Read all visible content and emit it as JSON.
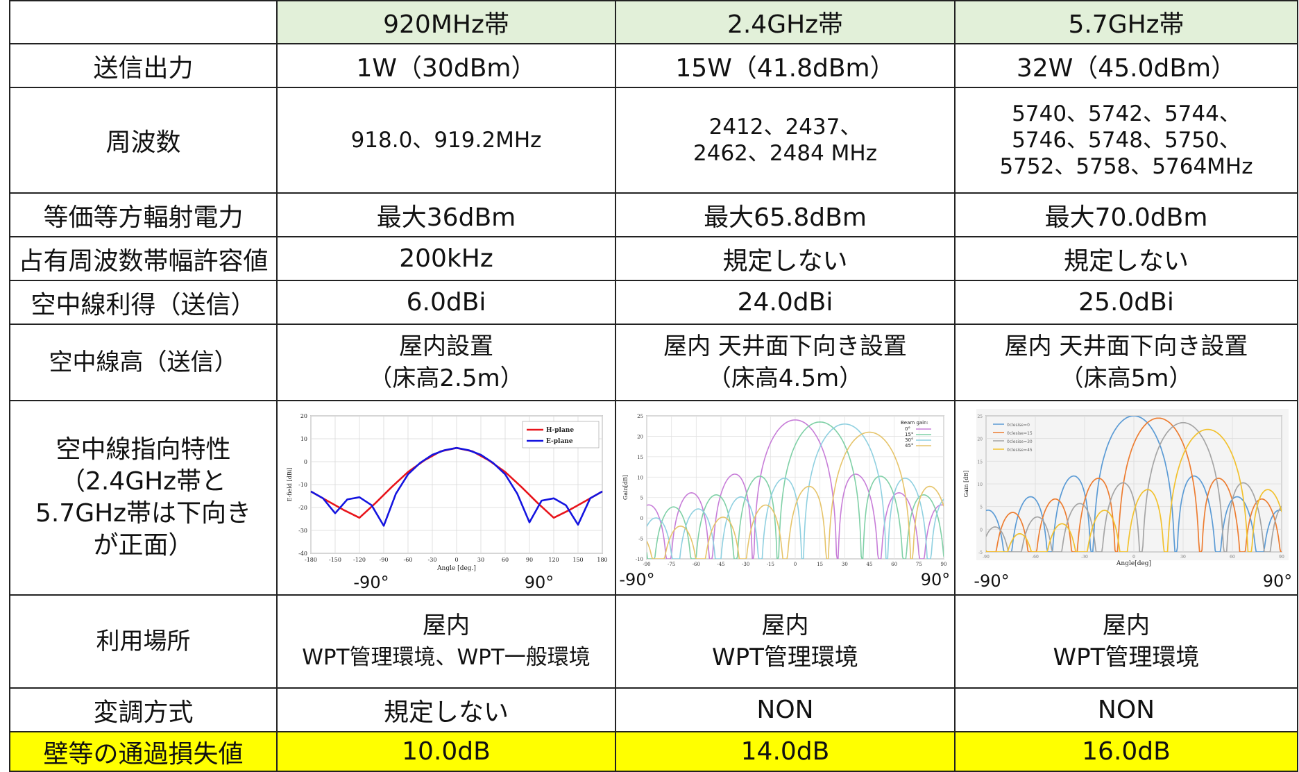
{
  "header": {
    "corner": "",
    "bands": [
      "920MHz帯",
      "2.4GHz帯",
      "5.7GHz帯"
    ]
  },
  "rows": {
    "output": {
      "label": "送信出力",
      "values": [
        "1W（30dBm）",
        "15W（41.8dBm）",
        "32W（45.0dBm）"
      ]
    },
    "frequency": {
      "label": "周波数",
      "values": [
        [
          "918.0、919.2MHz"
        ],
        [
          "2412、2437、",
          "2462、2484 MHz"
        ],
        [
          "5740、5742、5744、",
          "5746、5748、5750、",
          "5752、5758、5764MHz"
        ]
      ]
    },
    "eirp": {
      "label": "等価等方輻射電力",
      "values": [
        "最大36dBm",
        "最大65.8dBm",
        "最大70.0dBm"
      ]
    },
    "bandwidth": {
      "label": "占有周波数帯幅許容値",
      "values": [
        "200kHz",
        "規定しない",
        "規定しない"
      ]
    },
    "gain": {
      "label": "空中線利得（送信）",
      "values": [
        "6.0dBi",
        "24.0dBi",
        "25.0dBi"
      ]
    },
    "height": {
      "label": "空中線高（送信）",
      "values": [
        [
          "屋内設置",
          "（床高2.5m）"
        ],
        [
          "屋内 天井面下向き設置",
          "（床高4.5m）"
        ],
        [
          "屋内 天井面下向き設置",
          "（床高5m）"
        ]
      ]
    },
    "directivity": {
      "label_lines": [
        "空中線指向特性",
        "（2.4GHz帯と",
        "5.7GHz帯は下向き",
        "が正面）"
      ]
    },
    "place": {
      "label": "利用場所",
      "values": [
        [
          "屋内",
          "WPT管理環境、WPT一般環境"
        ],
        [
          "屋内",
          "WPT管理環境"
        ],
        [
          "屋内",
          "WPT管理環境"
        ]
      ]
    },
    "modulation": {
      "label": "変調方式",
      "values": [
        "規定しない",
        "NON",
        "NON"
      ]
    },
    "wall_loss": {
      "label": "壁等の通過損失値",
      "values": [
        "10.0dB",
        "14.0dB",
        "16.0dB"
      ]
    }
  },
  "chart_data": [
    {
      "type": "line",
      "xlabel": "Angle [deg.]",
      "ylabel": "E-field [dBi]",
      "xlim": [
        -180,
        180
      ],
      "ylim": [
        -40,
        20
      ],
      "xticks": [
        -180,
        -150,
        -120,
        -90,
        -60,
        -30,
        0,
        30,
        60,
        90,
        120,
        150,
        180
      ],
      "yticks": [
        -40,
        -30,
        -20,
        -10,
        0,
        10,
        20
      ],
      "annotations": [
        "-90°",
        "90°"
      ],
      "legend_position": "top-right",
      "series": [
        {
          "name": "H-plane",
          "color": "#e8141b",
          "x": [
            -180,
            -160,
            -140,
            -120,
            -100,
            -80,
            -60,
            -40,
            -20,
            0,
            20,
            40,
            60,
            80,
            100,
            120,
            140,
            160,
            180
          ],
          "y": [
            -13,
            -17,
            -21,
            -24.5,
            -18,
            -11,
            -4.5,
            0.5,
            4.5,
            6,
            4.5,
            0.5,
            -4.5,
            -11,
            -18,
            -24.5,
            -21,
            -17,
            -13
          ]
        },
        {
          "name": "E-plane",
          "color": "#1414e0",
          "x": [
            -180,
            -165,
            -150,
            -135,
            -120,
            -105,
            -90,
            -75,
            -60,
            -45,
            -30,
            -15,
            0,
            15,
            30,
            45,
            60,
            75,
            90,
            105,
            120,
            135,
            150,
            165,
            180
          ],
          "y": [
            -13,
            -16,
            -22.5,
            -16.5,
            -15.5,
            -19,
            -28,
            -14,
            -5.5,
            -0.5,
            3,
            5,
            6,
            5,
            3,
            -0.5,
            -5.5,
            -14,
            -26.5,
            -17,
            -16,
            -19,
            -27.5,
            -16,
            -13
          ]
        }
      ]
    },
    {
      "type": "line",
      "ylabel": "Gain[dB]",
      "xlim": [
        -90,
        90
      ],
      "ylim": [
        -10,
        25
      ],
      "xticks": [
        -90,
        -75,
        -60,
        -45,
        -30,
        -15,
        0,
        15,
        30,
        45,
        60,
        75,
        90
      ],
      "yticks": [
        -10,
        -5,
        0,
        5,
        10,
        15,
        20,
        25
      ],
      "annotations": [
        "-90°",
        "90°"
      ],
      "legend_title": "Beam gain:",
      "legend_position": "top-right",
      "series": [
        {
          "name": "0°",
          "color": "#c77dd8",
          "peak_angle": 0,
          "peak_gain": 24
        },
        {
          "name": "15°",
          "color": "#7fd0a6",
          "peak_angle": 15,
          "peak_gain": 23.5
        },
        {
          "name": "30°",
          "color": "#8fd0e0",
          "peak_angle": 30,
          "peak_gain": 23
        },
        {
          "name": "45°",
          "color": "#e6c46a",
          "peak_angle": 45,
          "peak_gain": 21
        }
      ]
    },
    {
      "type": "line",
      "xlabel": "Angle[deg]",
      "ylabel": "Gain [dB]",
      "xlim": [
        -90,
        90
      ],
      "ylim": [
        -5,
        25
      ],
      "xticks": [
        -90,
        -60,
        -30,
        0,
        30,
        60,
        90
      ],
      "yticks": [
        -5,
        0,
        5,
        10,
        15,
        20,
        25
      ],
      "annotations": [
        "-90°",
        "90°"
      ],
      "legend_position": "top-left",
      "series": [
        {
          "name": "0clesise=0",
          "color": "#5b9bd5",
          "peak_angle": 0,
          "peak_gain": 25
        },
        {
          "name": "0clesise=15",
          "color": "#ed7d31",
          "peak_angle": 15,
          "peak_gain": 24.5
        },
        {
          "name": "0clesise=30",
          "color": "#a5a5a5",
          "peak_angle": 30,
          "peak_gain": 23.5
        },
        {
          "name": "0clesise=45",
          "color": "#f2c12e",
          "peak_angle": 45,
          "peak_gain": 22
        }
      ]
    }
  ]
}
